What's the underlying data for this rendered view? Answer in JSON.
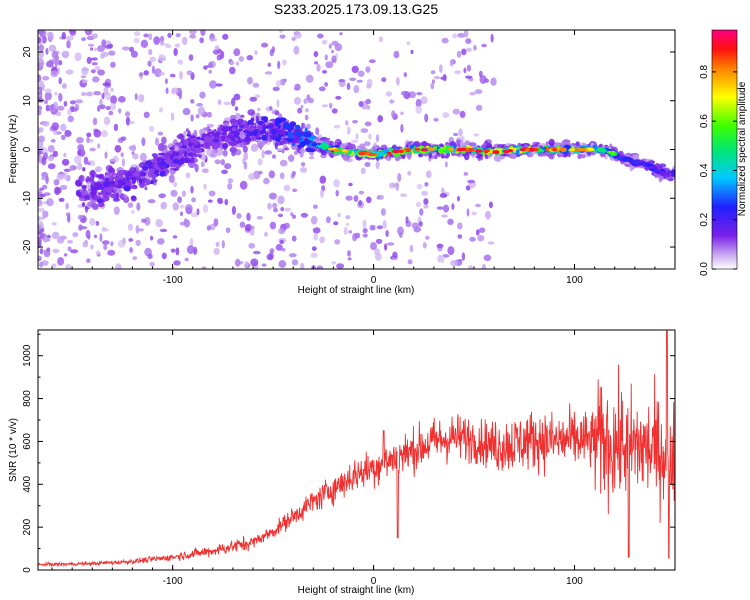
{
  "title": "S233.2025.173.09.13.G25",
  "colors": {
    "snr_line": "#f03030",
    "background": "#ffffff",
    "axis": "#000000"
  },
  "chart_data": [
    {
      "type": "heatmap",
      "xlabel": "Height of straight line (km)",
      "ylabel": "Frequency (Hz)",
      "xlim": [
        -167,
        150
      ],
      "ylim": [
        -24.5,
        24.5
      ],
      "xticks": [
        -100,
        0,
        100
      ],
      "xtick_labels": [
        "-100",
        "0",
        "100"
      ],
      "yticks": [
        -20,
        -10,
        0,
        10,
        20
      ],
      "ytick_labels": [
        "-20",
        "-10",
        "0",
        "10",
        "20"
      ],
      "colorbar": {
        "label": "Normalized spectral amplitude",
        "range": [
          0.0,
          0.97
        ],
        "ticks": [
          0.0,
          0.2,
          0.4,
          0.6,
          0.8
        ],
        "tick_labels": [
          "0.0",
          "0.2",
          "0.4",
          "0.6",
          "0.8"
        ],
        "colormap": "rainbow (white-violet-blue-cyan-green-yellow-red-magenta)"
      },
      "ridge_points": [
        {
          "x": -135,
          "y": -8,
          "amp": 0.2
        },
        {
          "x": -120,
          "y": -6,
          "amp": 0.25
        },
        {
          "x": -105,
          "y": -3,
          "amp": 0.25
        },
        {
          "x": -90,
          "y": 1,
          "amp": 0.2
        },
        {
          "x": -75,
          "y": 3,
          "amp": 0.2
        },
        {
          "x": -60,
          "y": 4,
          "amp": 0.25
        },
        {
          "x": -45,
          "y": 4,
          "amp": 0.3
        },
        {
          "x": -35,
          "y": 2,
          "amp": 0.4
        },
        {
          "x": -20,
          "y": 0,
          "amp": 0.7
        },
        {
          "x": -10,
          "y": -0.5,
          "amp": 0.8
        },
        {
          "x": 0,
          "y": -1,
          "amp": 0.85
        },
        {
          "x": 10,
          "y": -0.5,
          "amp": 0.9
        },
        {
          "x": 20,
          "y": 0,
          "amp": 0.85
        },
        {
          "x": 30,
          "y": 0,
          "amp": 0.8
        },
        {
          "x": 45,
          "y": 0,
          "amp": 0.8
        },
        {
          "x": 60,
          "y": -0.5,
          "amp": 0.85
        },
        {
          "x": 75,
          "y": 0,
          "amp": 0.85
        },
        {
          "x": 90,
          "y": 0,
          "amp": 0.75
        },
        {
          "x": 105,
          "y": 0,
          "amp": 0.7
        },
        {
          "x": 115,
          "y": 0,
          "amp": 0.6
        },
        {
          "x": 125,
          "y": -2,
          "amp": 0.35
        },
        {
          "x": 135,
          "y": -3,
          "amp": 0.3
        },
        {
          "x": 145,
          "y": -5,
          "amp": 0.3
        }
      ]
    },
    {
      "type": "line",
      "xlabel": "Height of straight line (km)",
      "ylabel": "SNR (10 * v/v)",
      "xlim": [
        -167,
        150
      ],
      "ylim": [
        0,
        1120
      ],
      "xticks": [
        -100,
        0,
        100
      ],
      "xtick_labels": [
        "-100",
        "0",
        "100"
      ],
      "yticks": [
        0,
        200,
        400,
        600,
        800,
        1000
      ],
      "ytick_labels": [
        "0",
        "200",
        "400",
        "600",
        "800",
        "1000"
      ],
      "trend": {
        "x": [
          -167,
          -140,
          -120,
          -100,
          -80,
          -60,
          -50,
          -40,
          -30,
          -20,
          -10,
          0,
          10,
          20,
          30,
          40,
          50,
          60,
          70,
          80,
          90,
          100,
          110,
          120,
          130,
          140,
          150
        ],
        "y": [
          25,
          30,
          40,
          60,
          90,
          130,
          180,
          250,
          320,
          380,
          440,
          480,
          520,
          560,
          600,
          620,
          610,
          580,
          590,
          610,
          600,
          610,
          600,
          590,
          580,
          560,
          540
        ]
      },
      "annotated_values": [
        {
          "x": 5,
          "y": 650
        },
        {
          "x": 12,
          "y": 150
        },
        {
          "x": 127,
          "y": 1080
        },
        {
          "x": 146,
          "y": 1115
        },
        {
          "x": 127,
          "y": 60
        },
        {
          "x": 147,
          "y": 55
        }
      ]
    }
  ]
}
